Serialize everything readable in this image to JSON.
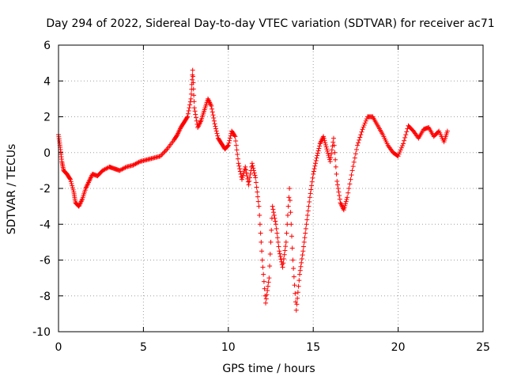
{
  "chart_data": {
    "type": "scatter",
    "title": "Day 294 of 2022, Sidereal Day-to-day VTEC variation (SDTVAR) for receiver ac71",
    "xlabel": "GPS time / hours",
    "ylabel": "SDTVAR / TECUs",
    "xlim": [
      0,
      25
    ],
    "ylim": [
      -10,
      6
    ],
    "xticks": [
      0,
      5,
      10,
      15,
      20,
      25
    ],
    "yticks": [
      -10,
      -8,
      -6,
      -4,
      -2,
      0,
      2,
      4,
      6
    ],
    "grid": true,
    "marker": "plus",
    "color": "#ff0000",
    "series": [
      {
        "name": "SDTVAR",
        "x": [
          0.0,
          0.1,
          0.2,
          0.3,
          0.5,
          0.7,
          0.9,
          1.0,
          1.2,
          1.4,
          1.6,
          1.8,
          2.0,
          2.3,
          2.6,
          3.0,
          3.3,
          3.6,
          4.0,
          4.4,
          4.8,
          5.2,
          5.6,
          6.0,
          6.4,
          6.8,
          7.0,
          7.2,
          7.4,
          7.6,
          7.8,
          7.9,
          8.0,
          8.2,
          8.4,
          8.6,
          8.8,
          9.0,
          9.2,
          9.4,
          9.6,
          9.8,
          10.0,
          10.2,
          10.4,
          10.6,
          10.8,
          11.0,
          11.2,
          11.4,
          11.6,
          11.8,
          12.0,
          12.2,
          12.4,
          12.6,
          12.8,
          13.0,
          13.2,
          13.4,
          13.6,
          13.8,
          14.0,
          14.2,
          14.4,
          14.6,
          14.8,
          15.0,
          15.2,
          15.4,
          15.6,
          15.8,
          16.0,
          16.2,
          16.4,
          16.6,
          16.8,
          17.0,
          17.3,
          17.6,
          17.9,
          18.2,
          18.5,
          18.8,
          19.1,
          19.4,
          19.7,
          20.0,
          20.3,
          20.6,
          20.9,
          21.2,
          21.5,
          21.8,
          22.1,
          22.4,
          22.7,
          22.9
        ],
        "y": [
          1.0,
          0.3,
          -0.5,
          -1.0,
          -1.2,
          -1.5,
          -2.2,
          -2.8,
          -3.0,
          -2.6,
          -2.0,
          -1.6,
          -1.2,
          -1.3,
          -1.0,
          -0.8,
          -0.9,
          -1.0,
          -0.8,
          -0.7,
          -0.5,
          -0.4,
          -0.3,
          -0.2,
          0.2,
          0.7,
          1.0,
          1.4,
          1.7,
          2.0,
          3.0,
          4.6,
          2.5,
          1.4,
          1.8,
          2.4,
          3.0,
          2.6,
          1.6,
          0.8,
          0.5,
          0.2,
          0.4,
          1.2,
          0.9,
          -0.6,
          -1.5,
          -0.8,
          -1.8,
          -0.6,
          -1.4,
          -3.0,
          -6.0,
          -8.4,
          -7.0,
          -3.0,
          -4.0,
          -5.5,
          -6.4,
          -5.0,
          -2.0,
          -6.0,
          -8.8,
          -6.8,
          -5.5,
          -4.0,
          -2.5,
          -1.2,
          -0.3,
          0.5,
          0.9,
          0.2,
          -0.5,
          0.8,
          -1.6,
          -2.8,
          -3.2,
          -2.5,
          -1.0,
          0.4,
          1.3,
          2.0,
          2.0,
          1.5,
          1.0,
          0.4,
          0.0,
          -0.2,
          0.5,
          1.5,
          1.2,
          0.8,
          1.3,
          1.4,
          0.9,
          1.2,
          0.6,
          1.2
        ]
      }
    ]
  }
}
